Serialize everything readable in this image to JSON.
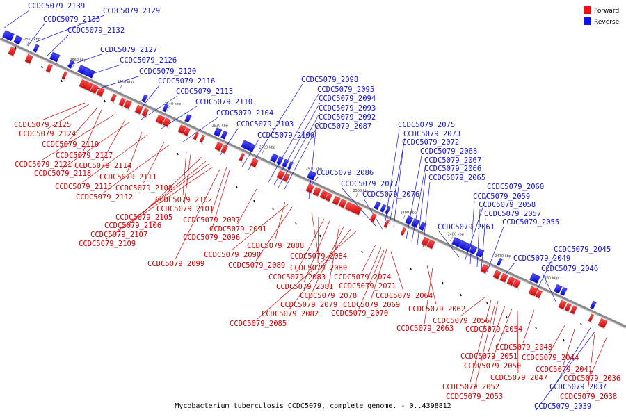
{
  "caption": "Mycobacterium tuberculosis CCDC5079, complete genome. - 0..4398812",
  "legend": [
    {
      "name": "Forward",
      "color": "#ee1111"
    },
    {
      "name": "Reverse",
      "color": "#1111ee"
    }
  ],
  "ticks": [
    "2570 kbp",
    "2560 kbp",
    "2550 kbp",
    "2540 kbp",
    "2530 kbp",
    "2520 kbp",
    "2510 kbp",
    "2500 kbp",
    "2490 kbp",
    "2480 kbp",
    "2470 kbp",
    "2460 kbp"
  ],
  "reverse_labels": [
    "CCDC5079_2139",
    "CCDC5079_2129",
    "CCDC5079_2135",
    "CCDC5079_2132",
    "CCDC5079_2127",
    "CCDC5079_2126",
    "CCDC5079_2120",
    "CCDC5079_2116",
    "CCDC5079_2113",
    "CCDC5079_2110",
    "CCDC5079_2104",
    "CCDC5079_2103",
    "CCDC5079_2100",
    "CCDC5079_2098",
    "CCDC5079_2095",
    "CCDC5079_2094",
    "CCDC5079_2093",
    "CCDC5079_2092",
    "CCDC5079_2087",
    "CCDC5079_2086",
    "CCDC5079_2077",
    "CCDC5079_2076",
    "CCDC5079_2075",
    "CCDC5079_2073",
    "CCDC5079_2072",
    "CCDC5079_2068",
    "CCDC5079_2067",
    "CCDC5079_2066",
    "CCDC5079_2065",
    "CCDC5079_2061",
    "CCDC5079_2060",
    "CCDC5079_2059",
    "CCDC5079_2058",
    "CCDC5079_2057",
    "CCDC5079_2055",
    "CCDC5079_2049",
    "CCDC5079_2045",
    "CCDC5079_2046",
    "CCDC5079_2037",
    "CCDC5079_2039"
  ],
  "forward_labels": [
    "CCDC5079_2125",
    "CCDC5079_2124",
    "CCDC5079_2119",
    "CCDC5079_2117",
    "CCDC5079_2121",
    "CCDC5079_2114",
    "CCDC5079_2118",
    "CCDC5079_2111",
    "CCDC5079_2115",
    "CCDC5079_2108",
    "CCDC5079_2112",
    "CCDC5079_2102",
    "CCDC5079_2101",
    "CCDC5079_2105",
    "CCDC5079_2097",
    "CCDC5079_2106",
    "CCDC5079_2091",
    "CCDC5079_2107",
    "CCDC5079_2096",
    "CCDC5079_2109",
    "CCDC5079_2088",
    "CCDC5079_2090",
    "CCDC5079_2084",
    "CCDC5079_2099",
    "CCDC5079_2089",
    "CCDC5079_2080",
    "CCDC5079_2083",
    "CCDC5079_2074",
    "CCDC5079_2081",
    "CCDC5079_2071",
    "CCDC5079_2078",
    "CCDC5079_2064",
    "CCDC5079_2079",
    "CCDC5079_2069",
    "CCDC5079_2082",
    "CCDC5079_2070",
    "CCDC5079_2062",
    "CCDC5079_2085",
    "CCDC5079_2063",
    "CCDC5079_2056",
    "CCDC5079_2054",
    "CCDC5079_2048",
    "CCDC5079_2051",
    "CCDC5079_2044",
    "CCDC5079_2050",
    "CCDC5079_2047",
    "CCDC5079_2041",
    "CCDC5079_2052",
    "CCDC5079_2036",
    "CCDC5079_2038",
    "CCDC5079_2053"
  ]
}
